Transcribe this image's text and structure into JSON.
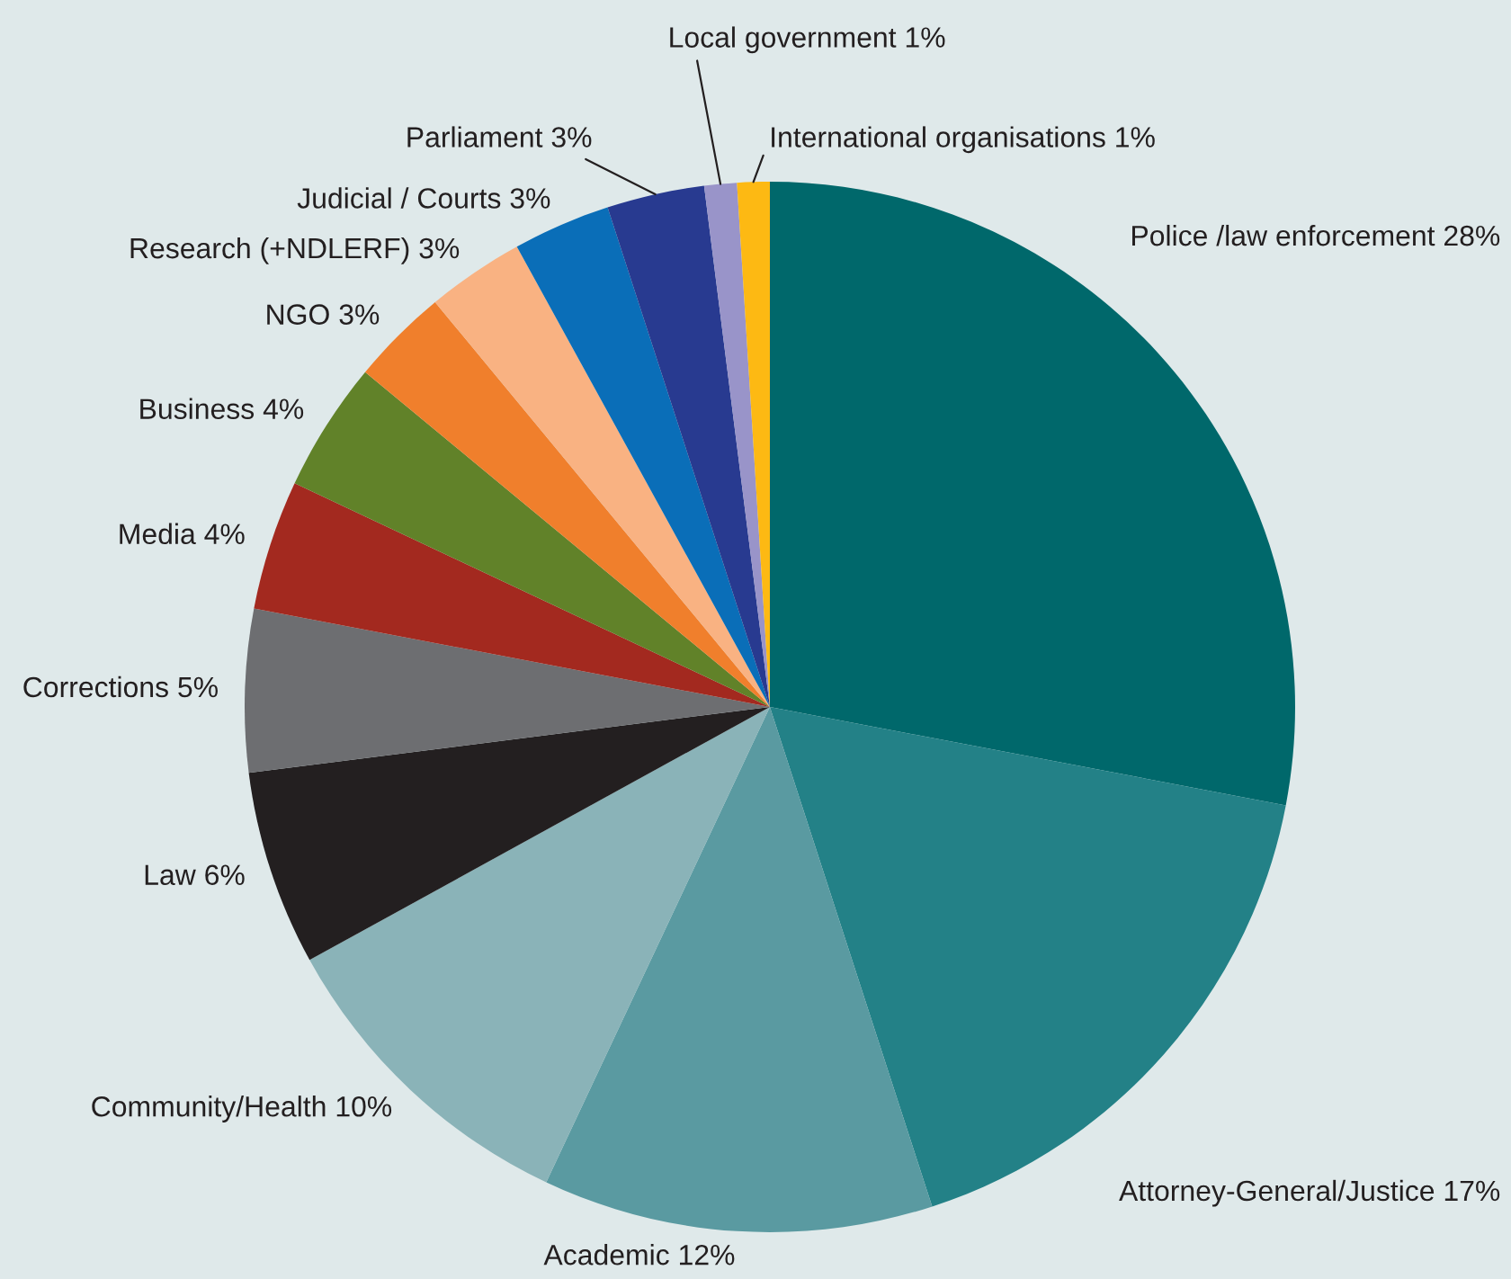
{
  "chart_data": {
    "type": "pie",
    "categories": [
      "Police /law enforcement",
      "Attorney-General/Justice",
      "Academic",
      "Community/Health",
      "Law",
      "Corrections",
      "Media",
      "Business",
      "NGO",
      "Research (+NDLERF)",
      "Judicial / Courts",
      "Parliament",
      "Local government",
      "International organisations"
    ],
    "values": [
      28,
      17,
      12,
      10,
      6,
      5,
      4,
      4,
      3,
      3,
      3,
      3,
      1,
      1
    ],
    "value_labels": [
      "28%",
      "17%",
      "12%",
      "10%",
      "6%",
      "5%",
      "4%",
      "4%",
      "3%",
      "3%",
      "3%",
      "3%",
      "1%",
      "1%"
    ],
    "colors": [
      "#00686b",
      "#238187",
      "#5a9aa1",
      "#8ab3b8",
      "#231f20",
      "#6d6e71",
      "#a3291f",
      "#618229",
      "#f07f2c",
      "#f9b282",
      "#0a6eb8",
      "#283a90",
      "#9994c9",
      "#fdb913"
    ],
    "legend": false
  }
}
